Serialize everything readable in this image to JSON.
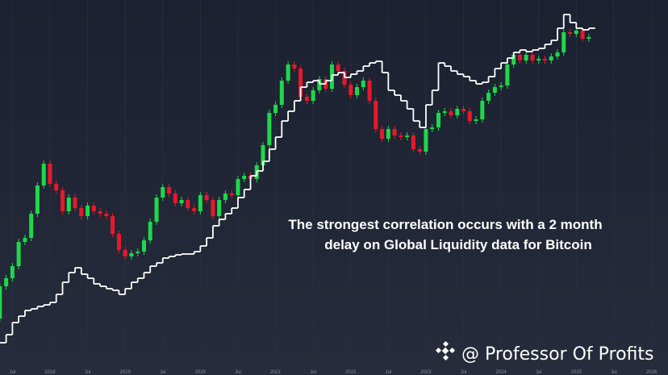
{
  "chart_data": {
    "type": "candlestick",
    "annotation": [
      "The strongest correlation occurs with a 2 month",
      "delay on Global Liquidity data for Bitcoin"
    ],
    "watermark": "@ Professor Of Profits",
    "xlim": [
      2017.335,
      2026.22
    ],
    "ylim": [
      0,
      465
    ],
    "grid": true,
    "xticks": [
      {
        "value": 2017.5,
        "label": "Jul"
      },
      2018,
      {
        "value": 2018.5,
        "label": "Jul"
      },
      2019,
      {
        "value": 2019.5,
        "label": "Jul"
      },
      2020,
      {
        "value": 2020.5,
        "label": "Jul"
      },
      2021,
      {
        "value": 2021.5,
        "label": "Jul"
      },
      2022,
      {
        "value": 2022.5,
        "label": "Jul"
      },
      2023,
      {
        "value": 2023.5,
        "label": "Jul"
      },
      2024,
      {
        "value": 2024.5,
        "label": "Jul"
      },
      2025,
      {
        "value": 2025.5,
        "label": "Jul"
      },
      2026
    ],
    "x": [
      2017.333,
      2017.417,
      2017.5,
      2017.583,
      2017.667,
      2017.75,
      2017.833,
      2017.917,
      2018,
      2018.083,
      2018.167,
      2018.25,
      2018.333,
      2018.417,
      2018.5,
      2018.583,
      2018.667,
      2018.75,
      2018.833,
      2018.917,
      2019,
      2019.083,
      2019.167,
      2019.25,
      2019.333,
      2019.417,
      2019.5,
      2019.583,
      2019.667,
      2019.75,
      2019.833,
      2019.917,
      2020,
      2020.083,
      2020.167,
      2020.25,
      2020.333,
      2020.417,
      2020.5,
      2020.583,
      2020.667,
      2020.75,
      2020.833,
      2020.917,
      2021,
      2021.083,
      2021.167,
      2021.25,
      2021.333,
      2021.417,
      2021.5,
      2021.583,
      2021.667,
      2021.75,
      2021.833,
      2021.917,
      2022,
      2022.083,
      2022.167,
      2022.25,
      2022.333,
      2022.417,
      2022.5,
      2022.583,
      2022.667,
      2022.75,
      2022.833,
      2022.917,
      2023,
      2023.083,
      2023.167,
      2023.25,
      2023.333,
      2023.417,
      2023.5,
      2023.583,
      2023.667,
      2023.75,
      2023.833,
      2023.917,
      2024,
      2024.083,
      2024.167,
      2024.25,
      2024.333,
      2024.417,
      2024.5,
      2024.583,
      2024.667,
      2024.75,
      2024.833,
      2024.917,
      2025,
      2025.083,
      2025.167
    ],
    "candles": {
      "up_color": "#1ed84a",
      "down_color": "#e8182c",
      "open": [
        70,
        110,
        120,
        135,
        165,
        170,
        200,
        235,
        262,
        237,
        229,
        203,
        220,
        207,
        197,
        210,
        203,
        200,
        197,
        175,
        155,
        147,
        151,
        153,
        167,
        190,
        220,
        233,
        225,
        213,
        217,
        207,
        203,
        223,
        217,
        197,
        217,
        225,
        223,
        243,
        247,
        243,
        260,
        285,
        325,
        335,
        365,
        385,
        380,
        345,
        340,
        353,
        367,
        355,
        385,
        377,
        360,
        347,
        357,
        365,
        340,
        305,
        293,
        305,
        297,
        295,
        297,
        280,
        277,
        305,
        307,
        325,
        327,
        322,
        330,
        327,
        315,
        317,
        340,
        350,
        357,
        359,
        385,
        397,
        390,
        397,
        390,
        392,
        390,
        395,
        400,
        425,
        423,
        427,
        417
      ],
      "close": [
        110,
        120,
        135,
        165,
        170,
        200,
        235,
        262,
        237,
        229,
        203,
        220,
        207,
        197,
        210,
        203,
        200,
        197,
        175,
        155,
        147,
        151,
        153,
        167,
        190,
        220,
        233,
        225,
        213,
        217,
        207,
        203,
        223,
        217,
        197,
        217,
        225,
        223,
        243,
        247,
        243,
        260,
        285,
        325,
        335,
        365,
        385,
        380,
        345,
        340,
        353,
        367,
        355,
        385,
        377,
        360,
        347,
        357,
        365,
        340,
        305,
        293,
        305,
        297,
        295,
        297,
        280,
        277,
        305,
        307,
        325,
        327,
        322,
        330,
        327,
        315,
        317,
        340,
        350,
        357,
        359,
        385,
        397,
        390,
        397,
        390,
        392,
        390,
        395,
        400,
        425,
        423,
        427,
        417,
        419
      ]
    },
    "line": {
      "color": "#ffffff",
      "values": [
        40,
        50,
        65,
        73,
        80,
        82,
        85,
        87,
        90,
        100,
        115,
        127,
        133,
        125,
        120,
        113,
        110,
        107,
        105,
        100,
        107,
        115,
        120,
        127,
        135,
        139,
        145,
        147,
        149,
        150,
        150,
        153,
        160,
        170,
        185,
        193,
        200,
        207,
        220,
        230,
        247,
        253,
        265,
        280,
        295,
        315,
        327,
        340,
        357,
        363,
        365,
        361,
        365,
        372,
        375,
        369,
        373,
        377,
        383,
        387,
        389,
        375,
        353,
        347,
        340,
        330,
        315,
        307,
        335,
        353,
        387,
        383,
        377,
        373,
        370,
        365,
        361,
        363,
        370,
        380,
        387,
        393,
        400,
        403,
        401,
        403,
        405,
        410,
        415,
        430,
        447,
        437,
        430,
        428,
        430
      ]
    }
  }
}
